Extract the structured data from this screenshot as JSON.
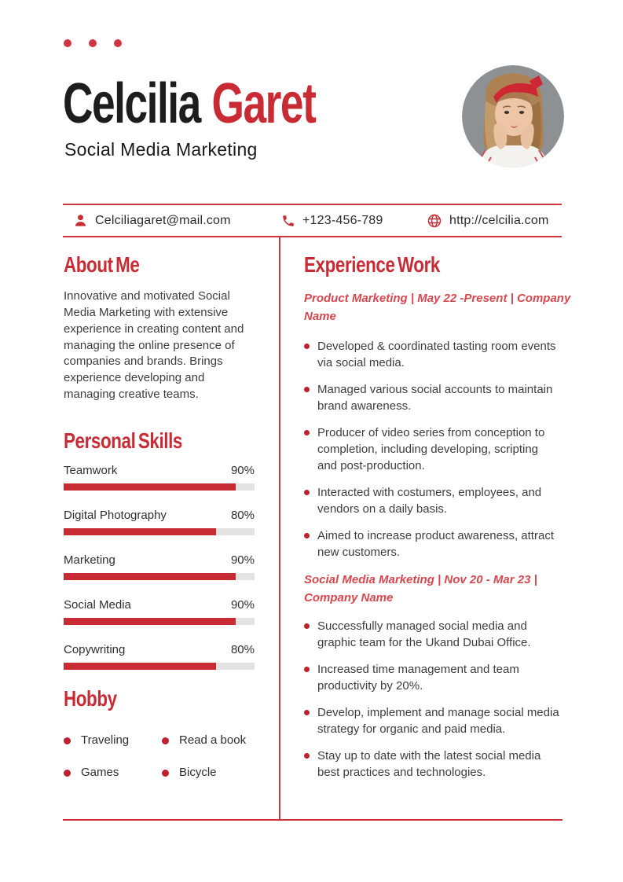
{
  "colors": {
    "accent": "#C92B35",
    "accent_line": "#CE3540",
    "accent_soft": "#D6474F",
    "bullet": "#BE202E",
    "bar_track": "#E3E3E3",
    "text_dark": "#1D1D1D",
    "text_body": "#3D3D3D"
  },
  "header": {
    "first_name": "Celcilia ",
    "last_name": "Garet",
    "subtitle": "Social Media Marketing",
    "photo": "circular portrait photo of woman with red headband on gray background"
  },
  "contact": {
    "email": {
      "icon": "person-icon",
      "text": "Celciliagaret@mail.com"
    },
    "phone": {
      "icon": "phone-icon",
      "text": "+123-456-789"
    },
    "website": {
      "icon": "globe-icon",
      "text": "http://celcilia.com"
    }
  },
  "about": {
    "title": "About Me",
    "body": "Innovative and motivated Social Media Marketing with extensive experience in creating content and managing the online presence of companies and brands. Brings experience developing and managing creative teams."
  },
  "skills": {
    "title": "Personal Skills",
    "items": [
      {
        "label": "Teamwork",
        "percent": "90%",
        "value": 90
      },
      {
        "label": "Digital Photography",
        "percent": "80%",
        "value": 80
      },
      {
        "label": "Marketing",
        "percent": "90%",
        "value": 90
      },
      {
        "label": "Social Media",
        "percent": "90%",
        "value": 90
      },
      {
        "label": "Copywriting",
        "percent": "80%",
        "value": 80
      }
    ]
  },
  "hobby": {
    "title": "Hobby",
    "items": [
      "Traveling",
      "Read a book",
      "Games",
      "Bicycle"
    ]
  },
  "experience": {
    "title": "Experience Work",
    "jobs": [
      {
        "heading": "Product Marketing | May 22 -Present | Company Name",
        "bullets": [
          "Developed & coordinated tasting room events via social media.",
          "Managed various social accounts to maintain brand awareness.",
          "Producer of video series from conception to completion, including developing, scripting and post-production.",
          "Interacted with costumers, employees, and vendors on a daily basis.",
          "Aimed to increase product awareness, attract new customers."
        ]
      },
      {
        "heading": "Social Media Marketing | Nov 20 - Mar 23 | Company Name",
        "bullets": [
          "Successfully managed social media and graphic team for the Ukand Dubai Office.",
          "Increased time management and team productivity by 20%.",
          "Develop, implement and manage social media strategy for organic and paid media.",
          "Stay up to date with the latest social media best practices and technologies."
        ]
      }
    ]
  }
}
